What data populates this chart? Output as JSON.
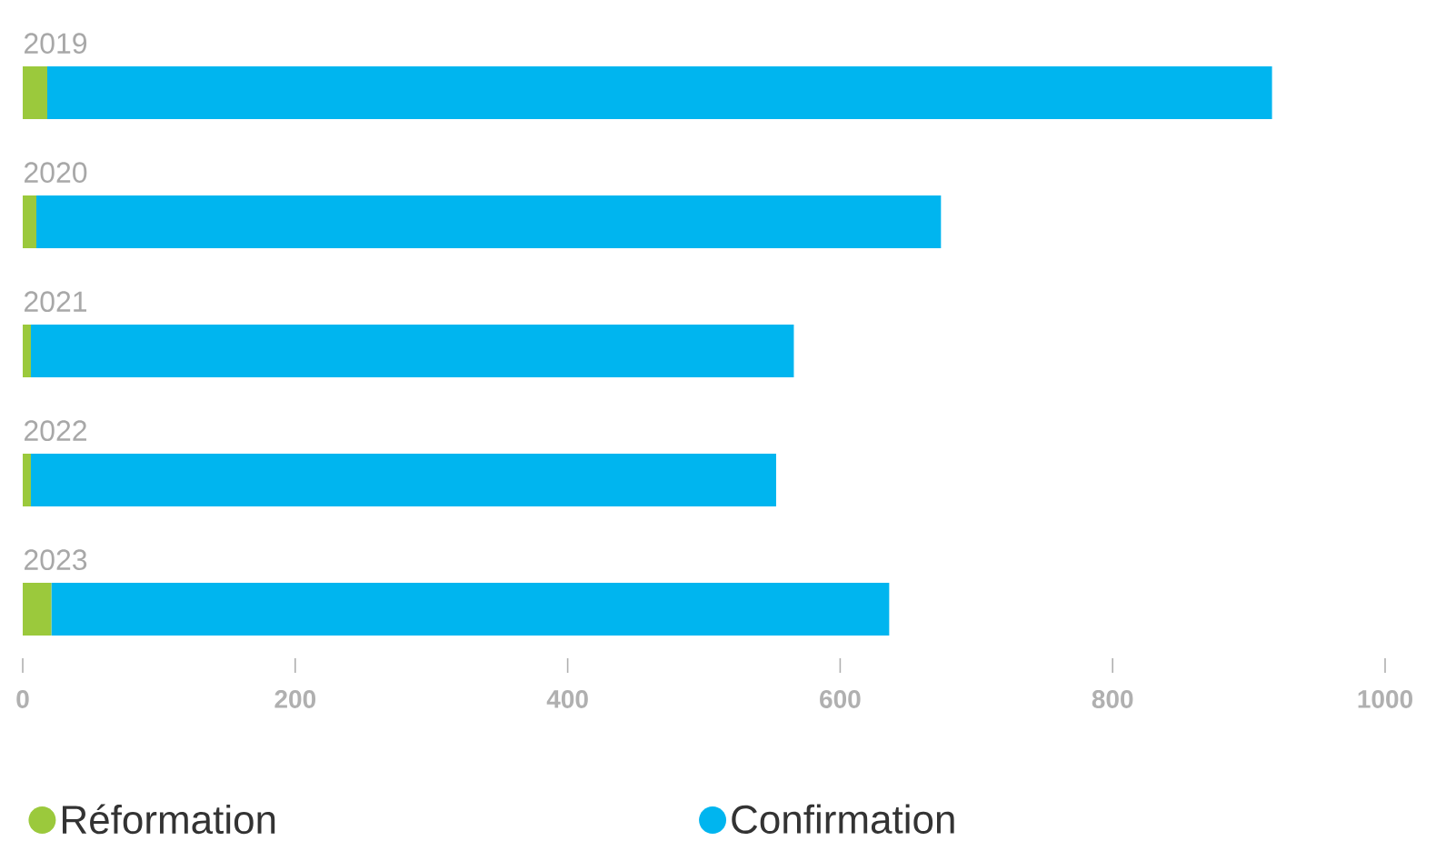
{
  "chart_data": {
    "type": "bar",
    "orientation": "horizontal",
    "stacked": true,
    "categories": [
      "2019",
      "2020",
      "2021",
      "2022",
      "2023"
    ],
    "series": [
      {
        "name": "Réformation",
        "color": "#9bc93c",
        "values": [
          18,
          10,
          6,
          6,
          21
        ]
      },
      {
        "name": "Confirmation",
        "color": "#00b5ef",
        "values": [
          899,
          664,
          560,
          547,
          615
        ]
      }
    ],
    "xlim": [
      0,
      1000
    ],
    "xticks": [
      0,
      200,
      400,
      600,
      800,
      1000
    ],
    "legend": "bottom"
  }
}
